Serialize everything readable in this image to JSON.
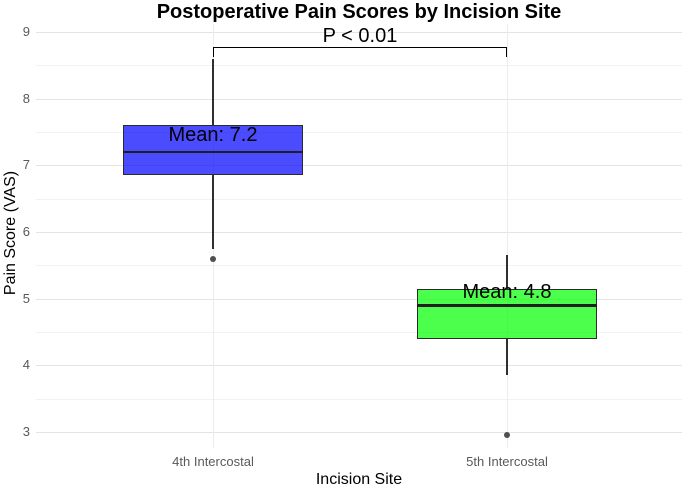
{
  "figure": {
    "background": "#ffffff",
    "colors": {
      "box_border": "#2b2b2b",
      "median_line": "#1f1f1f",
      "whisker": "#2f2f2f",
      "outlier_point": "#4f4f4f",
      "grid_major": "#e4e4e4",
      "grid_minor": "#f2f2f2",
      "category_gridline": "#ececec",
      "tick_label": "#595959",
      "bracket": "#000000"
    }
  },
  "chart_data": {
    "type": "boxplot",
    "title": "Postoperative Pain Scores by Incision Site",
    "xlabel": "Incision Site",
    "ylabel": "Pain Score (VAS)",
    "categories": [
      "4th Intercostal",
      "5th Intercostal"
    ],
    "ylim": [
      2.76,
      9.12
    ],
    "yticks": [
      3,
      4,
      5,
      6,
      7,
      8,
      9
    ],
    "yticks_minor": [
      3.5,
      4.5,
      5.5,
      6.5,
      7.5,
      8.5
    ],
    "grid": true,
    "legend": false,
    "series": [
      {
        "name": "4th Intercostal",
        "fill": "rgba(0,0,255,0.7)",
        "fill_hex": "#4d4dff",
        "mean": 7.2,
        "mean_label": "Mean: 7.2",
        "median": 7.2,
        "q1": 6.85,
        "q3": 7.6,
        "whisker_low": 5.75,
        "whisker_high": 8.6,
        "outliers": [
          5.6
        ],
        "label_y": 7.45
      },
      {
        "name": "5th Intercostal",
        "fill": "rgba(0,255,0,0.7)",
        "fill_hex": "#4dfb4d",
        "mean": 4.8,
        "mean_label": "Mean: 4.8",
        "median": 4.9,
        "q1": 4.4,
        "q3": 5.15,
        "whisker_low": 3.85,
        "whisker_high": 5.65,
        "outliers": [
          2.95
        ],
        "label_y": 5.1
      }
    ],
    "annotation": {
      "label": "P < 0.01",
      "y": 8.78,
      "drop_to": 8.62,
      "between": [
        0,
        1
      ]
    }
  }
}
